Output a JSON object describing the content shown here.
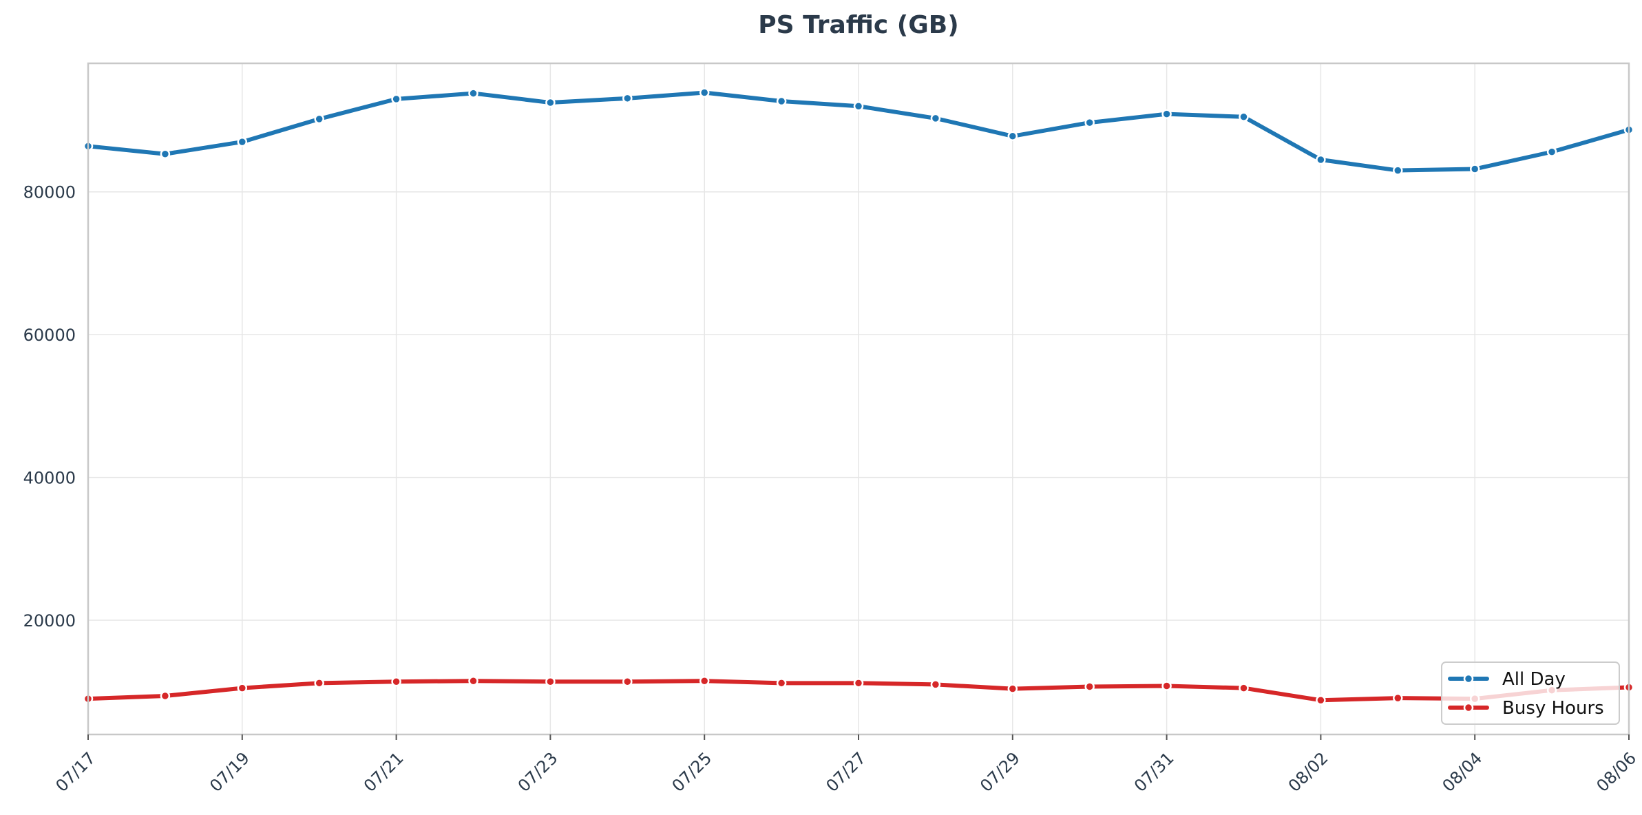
{
  "chart_data": {
    "type": "line",
    "title": "PS Traffic (GB)",
    "xlabel": "",
    "ylabel": "",
    "x": [
      "07/17",
      "07/18",
      "07/19",
      "07/20",
      "07/21",
      "07/22",
      "07/23",
      "07/24",
      "07/25",
      "07/26",
      "07/27",
      "07/28",
      "07/29",
      "07/30",
      "07/31",
      "08/01",
      "08/02",
      "08/03",
      "08/04",
      "08/05",
      "08/06"
    ],
    "x_tick_labels": [
      "07/17",
      "07/19",
      "07/21",
      "07/23",
      "07/25",
      "07/27",
      "07/29",
      "07/31",
      "08/02",
      "08/04",
      "08/06"
    ],
    "y_ticks": [
      20000,
      40000,
      60000,
      80000
    ],
    "ylim": [
      4000,
      98000
    ],
    "grid": true,
    "legend_position": "bottom-right",
    "series": [
      {
        "name": "All Day",
        "color": "#1f77b4",
        "values": [
          86400,
          85300,
          87000,
          90200,
          93000,
          93800,
          92500,
          93100,
          93900,
          92700,
          92000,
          90300,
          87800,
          89700,
          90900,
          90500,
          84500,
          83000,
          83200,
          85600,
          88700
        ]
      },
      {
        "name": "Busy Hours",
        "color": "#d62728",
        "values": [
          9000,
          9400,
          10500,
          11200,
          11400,
          11500,
          11400,
          11400,
          11500,
          11200,
          11200,
          11000,
          10400,
          10700,
          10800,
          10500,
          8800,
          9100,
          9000,
          10200,
          10600
        ]
      }
    ]
  }
}
